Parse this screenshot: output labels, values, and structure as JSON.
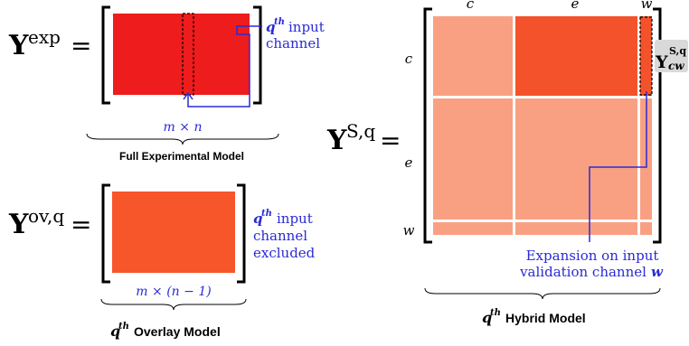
{
  "colors": {
    "full_block": "#ee1c1c",
    "overlay_block": "#f7562a",
    "hybrid_light": "#f9a083",
    "hybrid_dark": "#f4522a",
    "annotation_blue": "#2a2ad6",
    "cw_box": "#d9d9d9"
  },
  "full_model": {
    "symbol": "Y",
    "superscript": "exp",
    "equals": "=",
    "annotation_q": "q",
    "annotation_th": "th",
    "annotation_line1": "input",
    "annotation_line2": "channel",
    "dimension": "m × n",
    "caption": "Full Experimental Model"
  },
  "overlay_model": {
    "symbol": "Y",
    "superscript": "ov,q",
    "equals": "=",
    "annotation_q": "q",
    "annotation_th": "th",
    "annotation_line1": "input",
    "annotation_line2": "channel",
    "annotation_line3": "excluded",
    "dimension": "m × (n − 1)",
    "caption_q": "q",
    "caption_th": "th",
    "caption_rest": "Overlay Model"
  },
  "hybrid_model": {
    "symbol": "Y",
    "superscript": "S,q",
    "equals": "=",
    "col_labels": [
      "c",
      "e",
      "w"
    ],
    "row_labels": [
      "c",
      "e",
      "w"
    ],
    "cw_symbol": "Y",
    "cw_superscript": "S,q",
    "cw_subscript": "cw",
    "expansion_line1": "Expansion on input",
    "expansion_line2": "validation channel",
    "expansion_w": "w",
    "caption_q": "q",
    "caption_th": "th",
    "caption_rest": "Hybrid Model"
  }
}
